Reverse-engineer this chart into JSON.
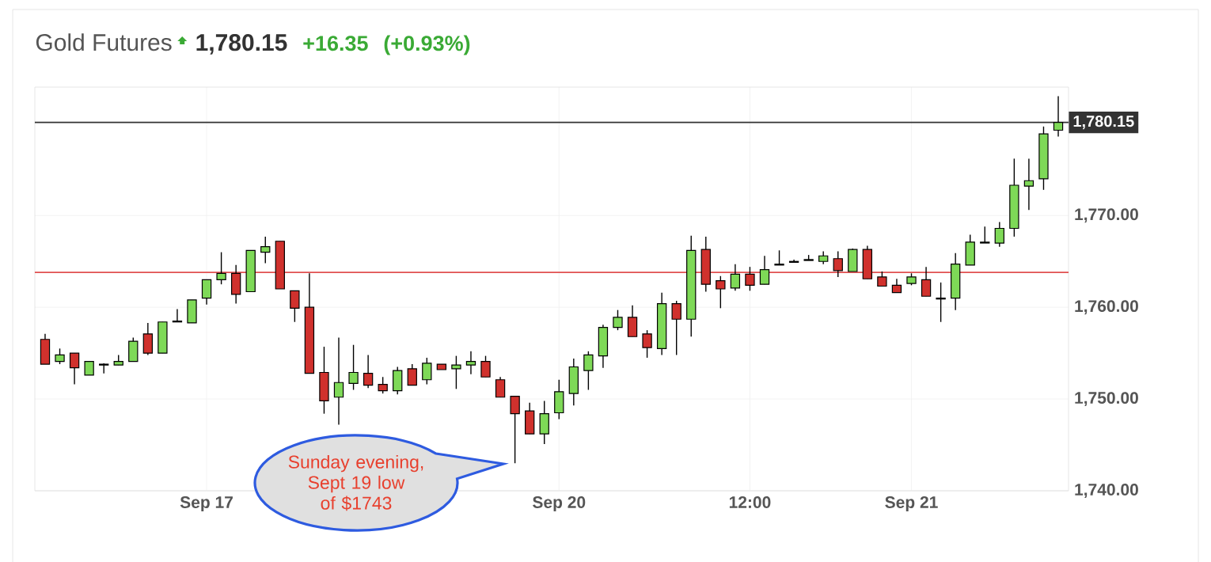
{
  "chart_data": {
    "type": "candlestick",
    "title": "Gold Futures",
    "annotations": [
      "1,780.15",
      "+16.35",
      "(+0.93%)",
      "Sunday evening, Sept 19 low of $1743"
    ],
    "categories": [
      null,
      null,
      null,
      null,
      null,
      null,
      null,
      null,
      null,
      null,
      null,
      "Sep 17",
      null,
      null,
      null,
      null,
      null,
      null,
      null,
      null,
      null,
      null,
      null,
      null,
      null,
      null,
      null,
      null,
      null,
      null,
      null,
      null,
      null,
      null,
      null,
      "Sep 20",
      null,
      null,
      null,
      null,
      null,
      null,
      null,
      null,
      null,
      null,
      null,
      null,
      "12:00",
      null,
      null,
      null,
      null,
      null,
      null,
      null,
      null,
      null,
      null,
      "Sep 21",
      null,
      null,
      null,
      null,
      null,
      null,
      null,
      null,
      null,
      null
    ],
    "ohlc": [
      [
        1756.5,
        1757.1,
        1753.8,
        1753.8
      ],
      [
        1754.1,
        1755.5,
        1753.8,
        1754.8
      ],
      [
        1755.0,
        1755.0,
        1751.6,
        1753.4
      ],
      [
        1752.6,
        1754.1,
        1752.6,
        1754.1
      ],
      [
        1753.7,
        1753.9,
        1752.8,
        1753.8
      ],
      [
        1753.7,
        1754.8,
        1753.7,
        1754.1
      ],
      [
        1754.1,
        1756.7,
        1754.1,
        1756.3
      ],
      [
        1757.1,
        1758.3,
        1754.8,
        1755.0
      ],
      [
        1755.0,
        1758.4,
        1755.0,
        1758.4
      ],
      [
        1758.4,
        1759.8,
        1758.4,
        1758.5
      ],
      [
        1758.3,
        1760.8,
        1758.3,
        1760.8
      ],
      [
        1761.0,
        1763.0,
        1760.3,
        1763.0
      ],
      [
        1763.0,
        1766.0,
        1762.5,
        1763.7
      ],
      [
        1763.7,
        1764.6,
        1760.4,
        1761.4
      ],
      [
        1761.7,
        1766.2,
        1761.7,
        1766.2
      ],
      [
        1766.0,
        1767.7,
        1764.8,
        1766.6
      ],
      [
        1767.2,
        1767.2,
        1762.0,
        1762.0
      ],
      [
        1761.8,
        1761.8,
        1758.4,
        1759.9
      ],
      [
        1760.0,
        1763.7,
        1752.8,
        1752.8
      ],
      [
        1752.9,
        1755.7,
        1748.4,
        1749.8
      ],
      [
        1750.2,
        1756.7,
        1747.2,
        1751.8
      ],
      [
        1751.7,
        1755.9,
        1751.0,
        1752.9
      ],
      [
        1752.8,
        1754.8,
        1751.2,
        1751.5
      ],
      [
        1751.6,
        1752.4,
        1750.6,
        1750.9
      ],
      [
        1750.9,
        1753.5,
        1750.5,
        1753.1
      ],
      [
        1753.3,
        1753.8,
        1751.5,
        1751.5
      ],
      [
        1752.1,
        1754.5,
        1751.6,
        1753.9
      ],
      [
        1753.8,
        1753.8,
        1753.2,
        1753.2
      ],
      [
        1753.3,
        1754.7,
        1751.1,
        1753.7
      ],
      [
        1753.7,
        1755.2,
        1752.7,
        1754.1
      ],
      [
        1754.1,
        1754.7,
        1752.4,
        1752.4
      ],
      [
        1752.1,
        1752.4,
        1750.2,
        1750.2
      ],
      [
        1750.3,
        1750.3,
        1743.0,
        1748.4
      ],
      [
        1748.7,
        1749.6,
        1746.2,
        1746.2
      ],
      [
        1746.2,
        1749.8,
        1745.1,
        1748.4
      ],
      [
        1748.5,
        1752.1,
        1747.8,
        1750.8
      ],
      [
        1750.6,
        1754.4,
        1749.3,
        1753.5
      ],
      [
        1753.1,
        1755.2,
        1751.0,
        1754.8
      ],
      [
        1754.7,
        1758.1,
        1753.4,
        1757.8
      ],
      [
        1757.8,
        1759.7,
        1757.5,
        1758.9
      ],
      [
        1758.9,
        1760.2,
        1756.8,
        1756.8
      ],
      [
        1757.1,
        1757.5,
        1754.5,
        1755.6
      ],
      [
        1755.5,
        1761.6,
        1754.8,
        1760.4
      ],
      [
        1760.4,
        1760.7,
        1754.8,
        1758.7
      ],
      [
        1758.7,
        1767.8,
        1756.8,
        1766.2
      ],
      [
        1766.3,
        1767.7,
        1761.7,
        1762.5
      ],
      [
        1762.9,
        1763.4,
        1759.9,
        1762.0
      ],
      [
        1762.1,
        1764.7,
        1761.8,
        1763.6
      ],
      [
        1763.6,
        1764.4,
        1761.8,
        1762.4
      ],
      [
        1762.5,
        1765.6,
        1762.5,
        1764.1
      ],
      [
        1764.6,
        1766.2,
        1764.6,
        1764.7
      ],
      [
        1764.9,
        1765.2,
        1764.9,
        1765.0
      ],
      [
        1765.1,
        1765.7,
        1765.1,
        1765.2
      ],
      [
        1765.0,
        1766.1,
        1764.7,
        1765.6
      ],
      [
        1765.3,
        1766.1,
        1763.3,
        1764.0
      ],
      [
        1763.9,
        1766.4,
        1763.9,
        1766.3
      ],
      [
        1766.3,
        1766.7,
        1763.1,
        1763.1
      ],
      [
        1763.3,
        1763.9,
        1762.3,
        1762.3
      ],
      [
        1762.4,
        1763.1,
        1761.6,
        1761.6
      ],
      [
        1762.6,
        1763.7,
        1762.4,
        1763.3
      ],
      [
        1763.0,
        1764.4,
        1761.2,
        1761.2
      ],
      [
        1760.9,
        1762.7,
        1758.4,
        1761.0
      ],
      [
        1761.0,
        1765.9,
        1759.7,
        1764.7
      ],
      [
        1764.6,
        1767.9,
        1764.6,
        1767.1
      ],
      [
        1767.0,
        1768.8,
        1767.0,
        1767.1
      ],
      [
        1767.0,
        1769.3,
        1766.6,
        1768.6
      ],
      [
        1768.6,
        1776.2,
        1767.7,
        1773.3
      ],
      [
        1773.2,
        1776.2,
        1770.6,
        1773.8
      ],
      [
        1774.0,
        1779.7,
        1772.8,
        1778.9
      ],
      [
        1779.3,
        1783.0,
        1778.6,
        1780.15
      ]
    ],
    "ylim": [
      1740,
      1784
    ],
    "yticks": [
      {
        "value": 1740,
        "label": "1,740.00"
      },
      {
        "value": 1750,
        "label": "1,750.00"
      },
      {
        "value": 1760,
        "label": "1,760.00"
      },
      {
        "value": 1770,
        "label": "1,770.00"
      }
    ],
    "ref_lines": [
      {
        "axis": "y",
        "value": 1780.15,
        "label": "1,780.15",
        "color": "#333333"
      },
      {
        "axis": "y",
        "value": 1763.8,
        "color": "#e05050"
      }
    ],
    "grid": true
  }
}
